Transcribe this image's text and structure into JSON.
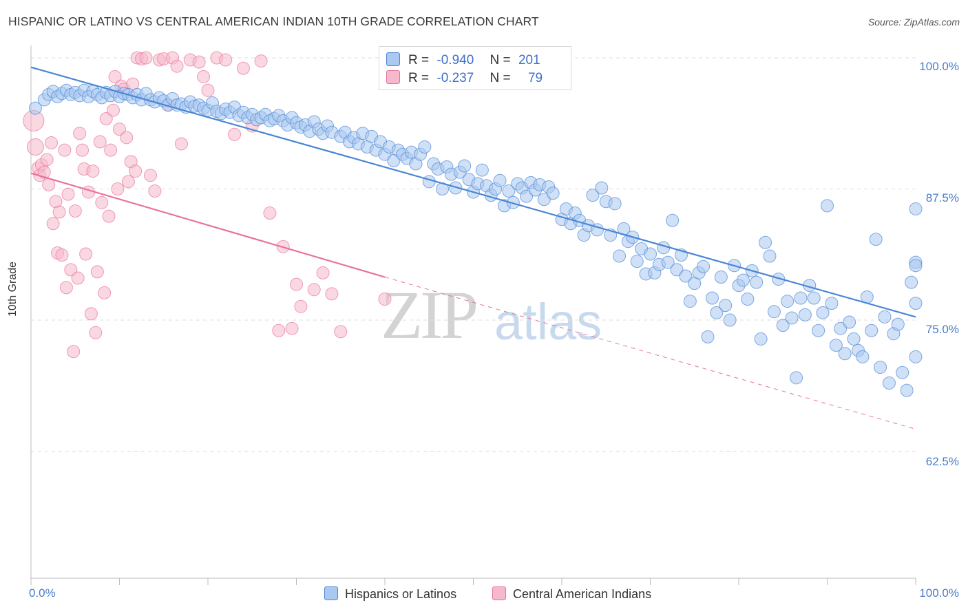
{
  "title": "HISPANIC OR LATINO VS CENTRAL AMERICAN INDIAN 10TH GRADE CORRELATION CHART",
  "source": "Source: ZipAtlas.com",
  "watermark": {
    "zip": "ZIP",
    "atlas": "atlas"
  },
  "colors": {
    "blue": "#4a86d6",
    "blue_fill": "#aac8f0",
    "pink": "#e8739a",
    "pink_fill": "#f6b8cb",
    "tick_text": "#4a7cc9"
  },
  "stats": {
    "blue": {
      "r_label": "R =",
      "r_value": "-0.940",
      "n_label": "N =",
      "n_value": "201"
    },
    "pink": {
      "r_label": "R =",
      "r_value": "-0.237",
      "n_label": "N =",
      "n_value": "79"
    }
  },
  "legend": {
    "blue_label": "Hispanics or Latinos",
    "pink_label": "Central American Indians"
  },
  "chart_data": {
    "type": "scatter",
    "title": "HISPANIC OR LATINO VS CENTRAL AMERICAN INDIAN 10TH GRADE CORRELATION CHART",
    "xlabel": "",
    "ylabel": "10th Grade",
    "xlim": [
      0,
      100
    ],
    "ylim": [
      51,
      101
    ],
    "x_tick_labels": [
      "0.0%",
      "100.0%"
    ],
    "y_tick_labels": [
      "100.0%",
      "87.5%",
      "75.0%",
      "62.5%"
    ],
    "y_tick_values": [
      100,
      87.5,
      75,
      62.5
    ],
    "grid": true,
    "legend_position": "bottom",
    "series": [
      {
        "name": "Hispanics or Latinos",
        "color": "#4a86d6",
        "trend": {
          "x": [
            0,
            100
          ],
          "y": [
            99.1,
            75.3
          ],
          "style": "solid"
        },
        "points": [
          [
            0.5,
            95.2
          ],
          [
            1.5,
            96.0
          ],
          [
            2,
            96.5
          ],
          [
            2.5,
            96.8
          ],
          [
            3,
            96.3
          ],
          [
            3.5,
            96.6
          ],
          [
            4,
            96.9
          ],
          [
            4.5,
            96.5
          ],
          [
            5,
            96.7
          ],
          [
            5.5,
            96.4
          ],
          [
            6,
            96.9
          ],
          [
            6.5,
            96.3
          ],
          [
            7,
            96.8
          ],
          [
            7.5,
            96.5
          ],
          [
            8,
            96.2
          ],
          [
            8.5,
            96.7
          ],
          [
            9,
            96.4
          ],
          [
            9.5,
            96.8
          ],
          [
            10,
            96.3
          ],
          [
            10.5,
            96.6
          ],
          [
            11,
            96.5
          ],
          [
            11.5,
            96.2
          ],
          [
            12,
            96.5
          ],
          [
            12.5,
            96.0
          ],
          [
            13,
            96.6
          ],
          [
            13.5,
            96.0
          ],
          [
            14,
            95.8
          ],
          [
            14.5,
            96.2
          ],
          [
            15,
            95.9
          ],
          [
            15.5,
            95.5
          ],
          [
            16,
            96.1
          ],
          [
            16.5,
            95.5
          ],
          [
            17,
            95.6
          ],
          [
            17.5,
            95.3
          ],
          [
            18,
            95.8
          ],
          [
            18.5,
            95.4
          ],
          [
            19,
            95.5
          ],
          [
            19.5,
            95.2
          ],
          [
            20,
            95.0
          ],
          [
            20.5,
            95.7
          ],
          [
            21,
            94.9
          ],
          [
            21.5,
            94.7
          ],
          [
            22,
            95.1
          ],
          [
            22.5,
            94.8
          ],
          [
            23,
            95.3
          ],
          [
            23.5,
            94.5
          ],
          [
            24,
            94.8
          ],
          [
            24.5,
            94.3
          ],
          [
            25,
            94.6
          ],
          [
            25.5,
            94.1
          ],
          [
            26,
            94.3
          ],
          [
            26.5,
            94.6
          ],
          [
            27,
            94.0
          ],
          [
            27.5,
            94.2
          ],
          [
            28,
            94.5
          ],
          [
            28.5,
            94.0
          ],
          [
            29,
            93.6
          ],
          [
            29.5,
            94.3
          ],
          [
            30,
            93.8
          ],
          [
            30.5,
            93.4
          ],
          [
            31,
            93.6
          ],
          [
            31.5,
            93.0
          ],
          [
            32,
            93.9
          ],
          [
            32.5,
            93.2
          ],
          [
            33,
            92.8
          ],
          [
            33.5,
            93.5
          ],
          [
            34,
            92.9
          ],
          [
            35,
            92.5
          ],
          [
            35.5,
            92.9
          ],
          [
            36,
            92.0
          ],
          [
            36.5,
            92.4
          ],
          [
            37,
            91.8
          ],
          [
            37.5,
            92.8
          ],
          [
            38,
            91.5
          ],
          [
            38.5,
            92.5
          ],
          [
            39,
            91.2
          ],
          [
            39.5,
            92.0
          ],
          [
            40,
            90.8
          ],
          [
            40.5,
            91.5
          ],
          [
            41,
            90.2
          ],
          [
            41.5,
            91.2
          ],
          [
            42,
            90.8
          ],
          [
            42.5,
            90.4
          ],
          [
            43,
            91.0
          ],
          [
            43.5,
            89.9
          ],
          [
            44,
            90.8
          ],
          [
            44.5,
            91.5
          ],
          [
            45,
            88.2
          ],
          [
            45.5,
            89.9
          ],
          [
            46,
            89.4
          ],
          [
            46.5,
            87.5
          ],
          [
            47,
            89.6
          ],
          [
            47.5,
            88.9
          ],
          [
            48,
            87.6
          ],
          [
            48.5,
            89.1
          ],
          [
            49,
            89.7
          ],
          [
            49.5,
            88.4
          ],
          [
            50,
            87.2
          ],
          [
            50.5,
            88.0
          ],
          [
            51,
            89.3
          ],
          [
            51.5,
            87.8
          ],
          [
            52,
            86.9
          ],
          [
            52.5,
            87.5
          ],
          [
            53,
            88.3
          ],
          [
            53.5,
            85.9
          ],
          [
            54,
            87.3
          ],
          [
            54.5,
            86.2
          ],
          [
            55,
            88.0
          ],
          [
            55.5,
            87.6
          ],
          [
            56,
            86.8
          ],
          [
            56.5,
            88.1
          ],
          [
            57,
            87.4
          ],
          [
            57.5,
            87.9
          ],
          [
            58,
            86.5
          ],
          [
            58.5,
            87.7
          ],
          [
            59,
            87.1
          ],
          [
            60,
            84.6
          ],
          [
            60.5,
            85.6
          ],
          [
            61,
            84.2
          ],
          [
            61.5,
            85.2
          ],
          [
            62,
            84.5
          ],
          [
            62.5,
            83.1
          ],
          [
            63,
            84.0
          ],
          [
            63.5,
            86.9
          ],
          [
            64,
            83.6
          ],
          [
            64.5,
            87.6
          ],
          [
            65,
            86.3
          ],
          [
            65.5,
            83.1
          ],
          [
            66,
            86.1
          ],
          [
            66.5,
            81.1
          ],
          [
            67,
            83.7
          ],
          [
            67.5,
            82.5
          ],
          [
            68,
            82.9
          ],
          [
            68.5,
            80.6
          ],
          [
            69,
            81.8
          ],
          [
            69.5,
            79.4
          ],
          [
            70,
            81.3
          ],
          [
            70.5,
            79.5
          ],
          [
            71,
            80.3
          ],
          [
            71.5,
            81.9
          ],
          [
            72,
            80.5
          ],
          [
            72.5,
            84.5
          ],
          [
            73,
            79.8
          ],
          [
            73.5,
            81.2
          ],
          [
            74,
            79.2
          ],
          [
            74.5,
            76.8
          ],
          [
            75,
            78.5
          ],
          [
            75.5,
            79.5
          ],
          [
            76,
            80.1
          ],
          [
            76.5,
            73.4
          ],
          [
            77,
            77.1
          ],
          [
            77.5,
            75.7
          ],
          [
            78,
            79.1
          ],
          [
            78.5,
            76.4
          ],
          [
            79,
            75.0
          ],
          [
            79.5,
            80.2
          ],
          [
            80,
            78.3
          ],
          [
            80.5,
            78.8
          ],
          [
            81,
            77.0
          ],
          [
            81.5,
            79.7
          ],
          [
            82,
            78.6
          ],
          [
            82.5,
            73.2
          ],
          [
            83,
            82.4
          ],
          [
            83.5,
            81.1
          ],
          [
            84,
            75.8
          ],
          [
            84.5,
            78.9
          ],
          [
            85,
            74.5
          ],
          [
            85.5,
            76.8
          ],
          [
            86,
            75.2
          ],
          [
            86.5,
            69.5
          ],
          [
            87,
            77.1
          ],
          [
            87.5,
            75.5
          ],
          [
            88,
            78.3
          ],
          [
            88.5,
            77.1
          ],
          [
            89,
            74.0
          ],
          [
            89.5,
            75.7
          ],
          [
            90,
            85.9
          ],
          [
            90.5,
            76.6
          ],
          [
            91,
            72.6
          ],
          [
            91.5,
            74.2
          ],
          [
            92,
            71.8
          ],
          [
            92.5,
            74.8
          ],
          [
            93,
            73.2
          ],
          [
            93.5,
            72.1
          ],
          [
            94,
            71.5
          ],
          [
            94.5,
            77.2
          ],
          [
            95,
            74.0
          ],
          [
            95.5,
            82.7
          ],
          [
            96,
            70.5
          ],
          [
            96.5,
            75.3
          ],
          [
            97,
            69.0
          ],
          [
            97.5,
            73.7
          ],
          [
            98,
            74.6
          ],
          [
            98.5,
            70.0
          ],
          [
            99,
            68.3
          ],
          [
            99.5,
            78.6
          ],
          [
            100,
            71.5
          ],
          [
            100,
            85.6
          ],
          [
            100,
            80.5
          ],
          [
            100,
            76.6
          ],
          [
            100,
            80.2
          ]
        ]
      },
      {
        "name": "Central American Indians",
        "color": "#e8739a",
        "trend": {
          "x": [
            0,
            40,
            100
          ],
          "y": [
            89.0,
            79.1,
            64.6
          ],
          "style": "solid-then-dashed"
        },
        "points": [
          [
            0.3,
            94.0
          ],
          [
            0.5,
            91.5
          ],
          [
            0.8,
            89.5
          ],
          [
            1,
            88.8
          ],
          [
            1.2,
            89.8
          ],
          [
            1.5,
            89.1
          ],
          [
            1.8,
            90.3
          ],
          [
            2,
            87.9
          ],
          [
            2.3,
            91.9
          ],
          [
            2.5,
            84.2
          ],
          [
            2.8,
            86.3
          ],
          [
            3,
            81.4
          ],
          [
            3.2,
            85.3
          ],
          [
            3.5,
            81.2
          ],
          [
            3.8,
            91.2
          ],
          [
            4,
            78.1
          ],
          [
            4.2,
            87.0
          ],
          [
            4.5,
            79.8
          ],
          [
            4.8,
            72.0
          ],
          [
            5,
            85.4
          ],
          [
            5.3,
            79.0
          ],
          [
            5.5,
            92.8
          ],
          [
            5.8,
            91.2
          ],
          [
            6,
            89.4
          ],
          [
            6.2,
            81.3
          ],
          [
            6.5,
            87.2
          ],
          [
            6.8,
            75.6
          ],
          [
            7,
            89.2
          ],
          [
            7.3,
            73.8
          ],
          [
            7.5,
            79.6
          ],
          [
            7.8,
            92.0
          ],
          [
            8,
            86.2
          ],
          [
            8.3,
            77.6
          ],
          [
            8.5,
            94.2
          ],
          [
            8.8,
            84.9
          ],
          [
            9,
            91.2
          ],
          [
            9.3,
            95.0
          ],
          [
            9.5,
            98.2
          ],
          [
            9.8,
            87.5
          ],
          [
            10,
            93.2
          ],
          [
            10.2,
            97.3
          ],
          [
            10.5,
            97.0
          ],
          [
            10.8,
            92.4
          ],
          [
            11,
            88.2
          ],
          [
            11.3,
            90.1
          ],
          [
            11.5,
            97.5
          ],
          [
            11.8,
            89.2
          ],
          [
            12,
            100.0
          ],
          [
            12.5,
            99.9
          ],
          [
            13,
            100.0
          ],
          [
            13.5,
            88.8
          ],
          [
            14,
            87.3
          ],
          [
            14.5,
            99.8
          ],
          [
            15,
            99.9
          ],
          [
            15.5,
            95.5
          ],
          [
            16,
            100.0
          ],
          [
            16.5,
            99.2
          ],
          [
            17,
            91.8
          ],
          [
            18,
            99.8
          ],
          [
            19,
            99.6
          ],
          [
            19.5,
            98.2
          ],
          [
            20,
            96.9
          ],
          [
            21,
            100.0
          ],
          [
            22,
            99.8
          ],
          [
            23,
            92.7
          ],
          [
            24,
            99.0
          ],
          [
            25,
            93.5
          ],
          [
            26,
            99.7
          ],
          [
            27,
            85.2
          ],
          [
            28,
            74.0
          ],
          [
            28.5,
            82.0
          ],
          [
            29.5,
            74.2
          ],
          [
            30,
            78.4
          ],
          [
            30.5,
            76.3
          ],
          [
            32,
            77.9
          ],
          [
            33,
            79.5
          ],
          [
            34,
            77.5
          ],
          [
            35,
            73.9
          ],
          [
            40,
            77.0
          ]
        ]
      }
    ]
  }
}
